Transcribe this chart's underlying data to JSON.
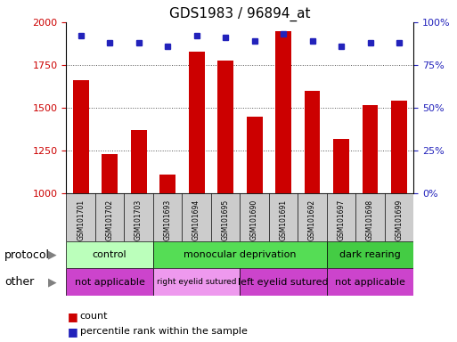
{
  "title": "GDS1983 / 96894_at",
  "samples": [
    "GSM101701",
    "GSM101702",
    "GSM101703",
    "GSM101693",
    "GSM101694",
    "GSM101695",
    "GSM101690",
    "GSM101691",
    "GSM101692",
    "GSM101697",
    "GSM101698",
    "GSM101699"
  ],
  "counts": [
    1660,
    1230,
    1370,
    1110,
    1830,
    1775,
    1450,
    1950,
    1600,
    1320,
    1515,
    1540
  ],
  "percentile_ranks": [
    92,
    88,
    88,
    86,
    92,
    91,
    89,
    93,
    89,
    86,
    88,
    88
  ],
  "ylim_left": [
    1000,
    2000
  ],
  "ylim_right": [
    0,
    100
  ],
  "yticks_left": [
    1000,
    1250,
    1500,
    1750,
    2000
  ],
  "yticks_right": [
    0,
    25,
    50,
    75,
    100
  ],
  "bar_color": "#cc0000",
  "dot_color": "#2222bb",
  "protocol_groups": [
    {
      "label": "control",
      "start": 0,
      "end": 3,
      "color": "#bbffbb"
    },
    {
      "label": "monocular deprivation",
      "start": 3,
      "end": 9,
      "color": "#55dd55"
    },
    {
      "label": "dark rearing",
      "start": 9,
      "end": 12,
      "color": "#44cc44"
    }
  ],
  "other_groups": [
    {
      "label": "not applicable",
      "start": 0,
      "end": 3,
      "color": "#cc44cc"
    },
    {
      "label": "right eyelid sutured",
      "start": 3,
      "end": 6,
      "color": "#ee99ee"
    },
    {
      "label": "left eyelid sutured",
      "start": 6,
      "end": 9,
      "color": "#cc44cc"
    },
    {
      "label": "not applicable",
      "start": 9,
      "end": 12,
      "color": "#cc44cc"
    }
  ],
  "legend_count_label": "count",
  "legend_pct_label": "percentile rank within the sample",
  "protocol_label": "protocol",
  "other_label": "other",
  "grid_color": "#555555",
  "background_color": "#ffffff",
  "xtick_bg_color": "#cccccc",
  "title_fontsize": 11,
  "tick_fontsize": 8,
  "label_fontsize": 8,
  "row_label_fontsize": 9,
  "row_text_fontsize": 9
}
